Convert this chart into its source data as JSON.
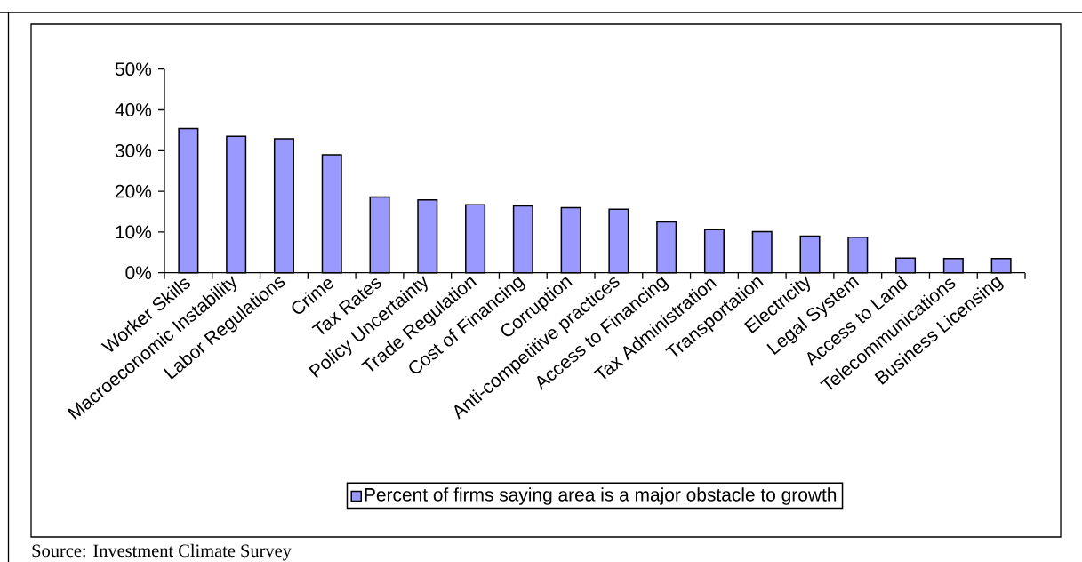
{
  "chart_data": {
    "type": "bar",
    "categories": [
      "Worker Skills",
      "Macroeconomic Instability",
      "Labor Regulations",
      "Crime",
      "Tax Rates",
      "Policy Uncertainty",
      "Trade Regulation",
      "Cost of Financing",
      "Corruption",
      "Anti-competitive practices",
      "Access to Financing",
      "Tax Administration",
      "Transportation",
      "Electricity",
      "Legal System",
      "Access to Land",
      "Telecommunications",
      "Business Licensing"
    ],
    "series": [
      {
        "name": "Percent of firms saying area is a major obstacle to growth",
        "color": "#9999ff",
        "values": [
          35.4,
          33.5,
          32.9,
          29.0,
          18.6,
          17.9,
          16.7,
          16.4,
          16.0,
          15.6,
          12.5,
          10.6,
          10.1,
          9.0,
          8.7,
          3.6,
          3.5,
          3.5
        ]
      }
    ],
    "ylim": [
      0,
      50
    ],
    "yticks": [
      {
        "value": 0,
        "label": "0%"
      },
      {
        "value": 10,
        "label": "10%"
      },
      {
        "value": 20,
        "label": "20%"
      },
      {
        "value": 30,
        "label": "30%"
      },
      {
        "value": 40,
        "label": "40%"
      },
      {
        "value": 50,
        "label": "50%"
      }
    ],
    "legend": "bottom",
    "annotations": [
      "Source: Investment Climate Survey"
    ]
  }
}
